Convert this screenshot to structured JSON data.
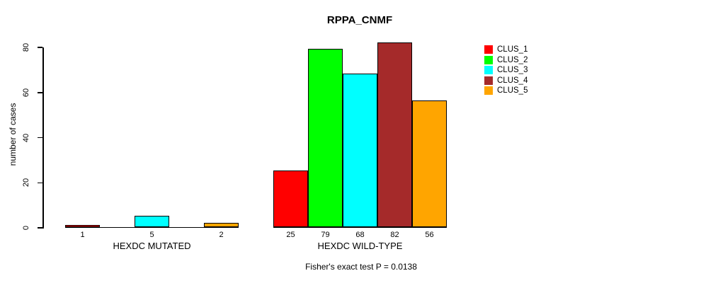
{
  "chart_data": {
    "type": "bar",
    "title": "RPPA_CNMF",
    "ylabel": "number of cases",
    "ylim": [
      0,
      80
    ],
    "yticks": [
      0,
      20,
      40,
      60,
      80
    ],
    "grid": false,
    "legend_position": "right",
    "legend": [
      {
        "label": "CLUS_1",
        "color": "#FF0000"
      },
      {
        "label": "CLUS_2",
        "color": "#00FF00"
      },
      {
        "label": "CLUS_3",
        "color": "#00FFFF"
      },
      {
        "label": "CLUS_4",
        "color": "#A52A2A"
      },
      {
        "label": "CLUS_5",
        "color": "#FFA500"
      }
    ],
    "groups": [
      {
        "label": "HEXDC MUTATED",
        "values": [
          1,
          0,
          5,
          0,
          2
        ],
        "bar_labels": [
          "1",
          "",
          "5",
          "",
          "2"
        ]
      },
      {
        "label": "HEXDC WILD-TYPE",
        "values": [
          25,
          79,
          68,
          82,
          56
        ],
        "bar_labels": [
          "25",
          "79",
          "68",
          "82",
          "56"
        ]
      }
    ],
    "series": [
      {
        "name": "CLUS_1",
        "values": [
          1,
          25
        ]
      },
      {
        "name": "CLUS_2",
        "values": [
          0,
          79
        ]
      },
      {
        "name": "CLUS_3",
        "values": [
          5,
          68
        ]
      },
      {
        "name": "CLUS_4",
        "values": [
          0,
          82
        ]
      },
      {
        "name": "CLUS_5",
        "values": [
          2,
          56
        ]
      }
    ],
    "annotation": "Fisher's exact test P = 0.0138"
  }
}
